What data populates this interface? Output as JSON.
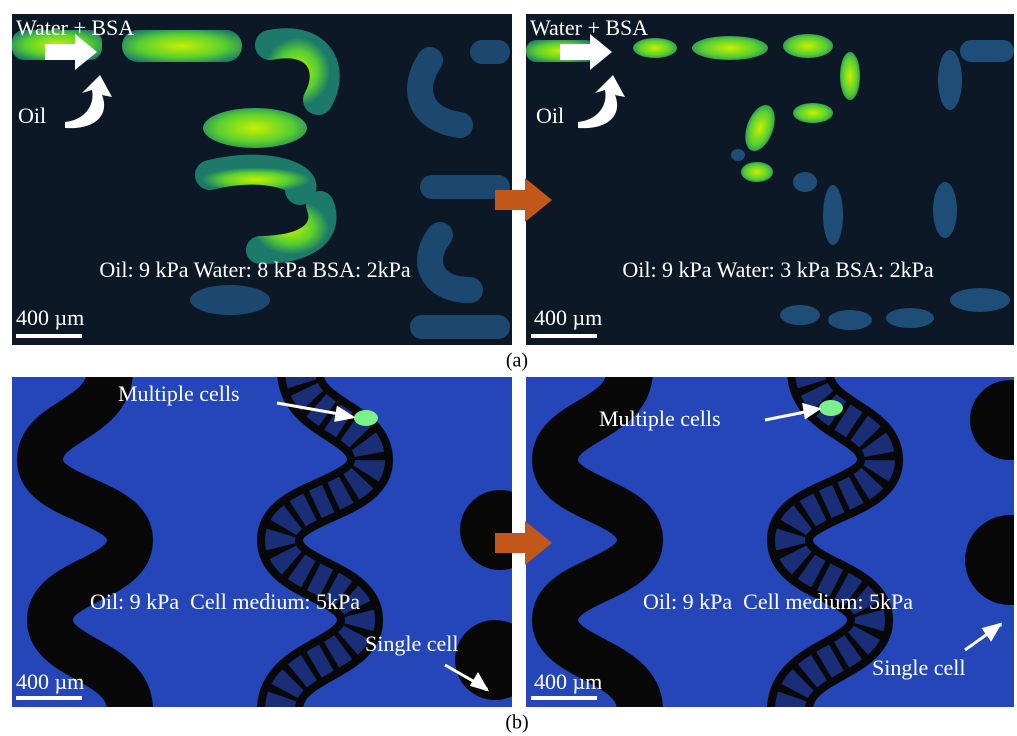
{
  "panels": {
    "a": {
      "label": "(a)",
      "left": {
        "inlet_label": "Water + BSA",
        "oil_label": "Oil",
        "pressures": "Oil: 9 kPa Water: 8 kPa BSA: 2kPa",
        "scale_bar": "400 µm"
      },
      "right": {
        "inlet_label": "Water + BSA",
        "oil_label": "Oil",
        "pressures": "Oil: 9 kPa Water: 3 kPa BSA: 2kPa",
        "scale_bar": "400 µm"
      }
    },
    "b": {
      "label": "(b)",
      "left": {
        "cells_label": "Multiple cells",
        "single_label": "Single cell",
        "pressures": "Oil: 9 kPa  Cell medium: 5kPa",
        "scale_bar": "400 µm"
      },
      "right": {
        "cells_label": "Multiple cells",
        "single_label": "Single cell",
        "pressures": "Oil: 9 kPa  Cell medium: 5kPa",
        "scale_bar": "400 µm"
      }
    }
  }
}
